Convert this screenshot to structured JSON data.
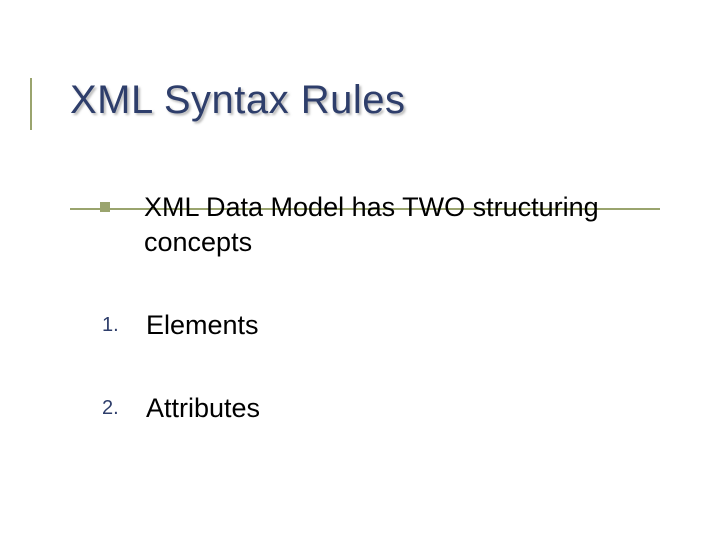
{
  "colors": {
    "title": "#2e3e6b",
    "rule": "#9aa46e",
    "bullet": "#9aa46e",
    "num": "#2e3e6b",
    "body": "#000000",
    "background": "#ffffff"
  },
  "title": "XML Syntax Rules",
  "items": [
    {
      "marker_type": "square",
      "marker": "",
      "text": "XML Data Model has TWO structuring concepts"
    },
    {
      "marker_type": "number",
      "marker": "1.",
      "text": "Elements"
    },
    {
      "marker_type": "number",
      "marker": "2.",
      "text": "Attributes"
    }
  ],
  "fonts": {
    "title_size": 40,
    "body_size": 27,
    "num_size": 20
  }
}
